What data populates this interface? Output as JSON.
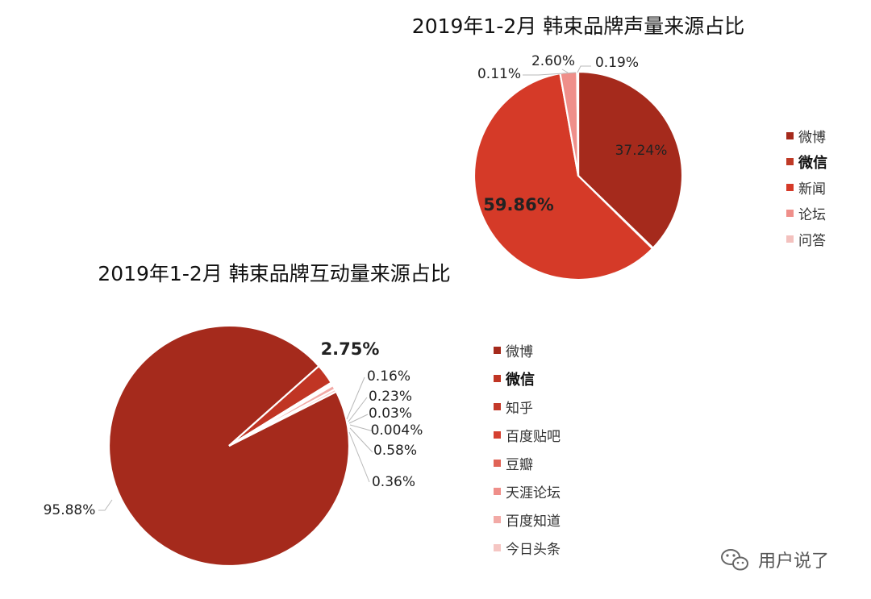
{
  "chart_data": [
    {
      "type": "pie",
      "title": "2019年1-2月 韩束品牌声量来源占比",
      "categories": [
        "微博",
        "微信",
        "新闻",
        "论坛",
        "问答"
      ],
      "values": [
        37.24,
        0.11,
        59.86,
        2.6,
        0.19
      ],
      "value_labels": [
        "37.24%",
        "0.11%",
        "59.86%",
        "2.60%",
        "0.19%"
      ],
      "colors": [
        "#a52a1c",
        "#bf3a26",
        "#d53a28",
        "#ef8f8a",
        "#f3c1be"
      ],
      "legend": {
        "position": "right",
        "bold_entries": [
          "微信"
        ]
      }
    },
    {
      "type": "pie",
      "title": "2019年1-2月 韩束品牌互动量来源占比",
      "categories": [
        "微博",
        "微信",
        "知乎",
        "百度贴吧",
        "豆瓣",
        "天涯论坛",
        "百度知道",
        "今日头条"
      ],
      "values": [
        95.88,
        2.75,
        0.16,
        0.23,
        0.03,
        0.004,
        0.58,
        0.36
      ],
      "value_labels": [
        "95.88%",
        "2.75%",
        "0.16%",
        "0.23%",
        "0.03%",
        "0.004%",
        "0.58%",
        "0.36%"
      ],
      "colors": [
        "#a52a1c",
        "#c03524",
        "#c4392a",
        "#d54030",
        "#e06356",
        "#ef8f8a",
        "#f2aaa6",
        "#f5c6c3"
      ],
      "legend": {
        "position": "right",
        "bold_entries": [
          "微信"
        ]
      }
    }
  ],
  "watermark": {
    "icon": "wechat-icon",
    "text": "用户说了"
  }
}
